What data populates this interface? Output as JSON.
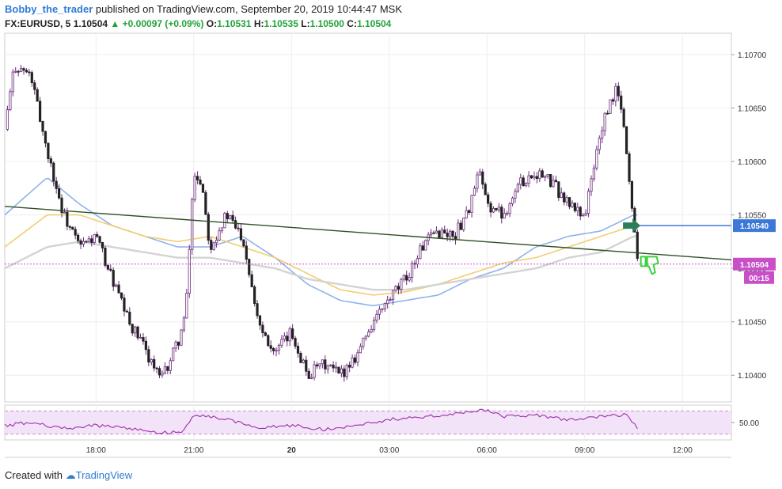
{
  "header": {
    "author": "Bobby_the_trader",
    "published_text": "published on TradingView.com, September 20, 2019 10:44:47 MSK",
    "symbol": "FX:EURUSD, 5",
    "last_price": "1.10504",
    "change_arrow": "▲",
    "change": "+0.00097 (+0.09%)",
    "open_label": "O:",
    "open_value": "1.10531",
    "high_label": "H:",
    "high_value": "1.10535",
    "low_label": "L:",
    "low_value": "1.10500",
    "close_label": "C:",
    "close_value": "1.10504"
  },
  "footer": {
    "created_with": "Created with",
    "brand": "TradingView"
  },
  "colors": {
    "candle_up": "#ffffff",
    "candle_down": "#222222",
    "wick": "#6b2d7a",
    "ma_blue": "#8fb3e8",
    "ma_gold": "#f2cd73",
    "ma_gray": "#d3d3d3",
    "trendline": "#2f4f23",
    "level_line": "#3b78d8",
    "rsi_line": "#9b30a8",
    "rsi_band": "#f3e3f9",
    "price_tag_blue": "#3b78d8",
    "price_tag_purple": "#c94fc9",
    "arrow": "#2e7d5a",
    "thumb_icon": "#3ad13a"
  },
  "chart_data": {
    "type": "candlestick",
    "symbol": "FX:EURUSD, 5",
    "ylim": [
      1.10375,
      1.1072
    ],
    "y_ticks": [
      "1.10700",
      "1.10650",
      "1.10600",
      "1.10550",
      "1.10500",
      "1.10450",
      "1.10400"
    ],
    "x_ticks": [
      "18:00",
      "21:00",
      "20",
      "03:00",
      "06:00",
      "09:00",
      "12:00"
    ],
    "price_levels": [
      {
        "label": "1.10540",
        "value": 1.1054,
        "style": "horizontal-line"
      },
      {
        "label": "1.10504",
        "value": 1.10504,
        "style": "last-price"
      }
    ],
    "countdown": "00:15",
    "trendline": {
      "from": {
        "x": "15:12",
        "y": 1.10558
      },
      "to": {
        "x": "13:30",
        "y": 1.10508
      }
    },
    "close_series_anchors": [
      [
        "15:12",
        1.1063
      ],
      [
        "15:30",
        1.1069
      ],
      [
        "16:00",
        1.1068
      ],
      [
        "16:30",
        1.1061
      ],
      [
        "17:00",
        1.1055
      ],
      [
        "17:30",
        1.1052
      ],
      [
        "18:00",
        1.1053
      ],
      [
        "18:30",
        1.1049
      ],
      [
        "19:00",
        1.1045
      ],
      [
        "19:30",
        1.10425
      ],
      [
        "20:00",
        1.10395
      ],
      [
        "20:30",
        1.1043
      ],
      [
        "20:45",
        1.10455
      ],
      [
        "21:00",
        1.1059
      ],
      [
        "21:15",
        1.1058
      ],
      [
        "21:30",
        1.1052
      ],
      [
        "22:00",
        1.1055
      ],
      [
        "22:30",
        1.1053
      ],
      [
        "23:00",
        1.1045
      ],
      [
        "23:30",
        1.1042
      ],
      [
        "00:00",
        1.1044
      ],
      [
        "00:30",
        1.104
      ],
      [
        "01:00",
        1.1041
      ],
      [
        "01:30",
        1.104
      ],
      [
        "02:00",
        1.1042
      ],
      [
        "02:30",
        1.1045
      ],
      [
        "03:00",
        1.1047
      ],
      [
        "03:30",
        1.1049
      ],
      [
        "04:00",
        1.1052
      ],
      [
        "04:30",
        1.10535
      ],
      [
        "05:00",
        1.1053
      ],
      [
        "05:30",
        1.1056
      ],
      [
        "05:45",
        1.1059
      ],
      [
        "06:00",
        1.1056
      ],
      [
        "06:30",
        1.1055
      ],
      [
        "07:00",
        1.1058
      ],
      [
        "07:30",
        1.1059
      ],
      [
        "08:00",
        1.1058
      ],
      [
        "08:30",
        1.1056
      ],
      [
        "09:00",
        1.1055
      ],
      [
        "09:30",
        1.1063
      ],
      [
        "10:00",
        1.1067
      ],
      [
        "10:15",
        1.1062
      ],
      [
        "10:30",
        1.1054
      ],
      [
        "10:40",
        1.10504
      ]
    ],
    "moving_averages": [
      {
        "color_key": "ma_blue",
        "anchors": [
          [
            "15:12",
            1.1055
          ],
          [
            "16:30",
            1.10585
          ],
          [
            "17:30",
            1.1056
          ],
          [
            "18:30",
            1.1054
          ],
          [
            "19:30",
            1.1053
          ],
          [
            "20:30",
            1.1052
          ],
          [
            "21:30",
            1.1052
          ],
          [
            "22:30",
            1.1053
          ],
          [
            "23:30",
            1.1051
          ],
          [
            "00:30",
            1.10485
          ],
          [
            "01:30",
            1.1047
          ],
          [
            "02:30",
            1.10465
          ],
          [
            "03:30",
            1.1047
          ],
          [
            "04:30",
            1.10475
          ],
          [
            "05:30",
            1.1049
          ],
          [
            "06:30",
            1.105
          ],
          [
            "07:30",
            1.1052
          ],
          [
            "08:30",
            1.1053
          ],
          [
            "09:30",
            1.10535
          ],
          [
            "10:30",
            1.1055
          ]
        ]
      },
      {
        "color_key": "ma_gold",
        "anchors": [
          [
            "15:12",
            1.1052
          ],
          [
            "16:30",
            1.1055
          ],
          [
            "17:30",
            1.1055
          ],
          [
            "18:30",
            1.1054
          ],
          [
            "19:30",
            1.1053
          ],
          [
            "20:30",
            1.10525
          ],
          [
            "21:30",
            1.1053
          ],
          [
            "22:30",
            1.1052
          ],
          [
            "23:30",
            1.1051
          ],
          [
            "00:30",
            1.10495
          ],
          [
            "01:30",
            1.1048
          ],
          [
            "02:30",
            1.10475
          ],
          [
            "03:30",
            1.10478
          ],
          [
            "04:30",
            1.10485
          ],
          [
            "05:30",
            1.10495
          ],
          [
            "06:30",
            1.10505
          ],
          [
            "07:30",
            1.1051
          ],
          [
            "08:30",
            1.1052
          ],
          [
            "09:30",
            1.1053
          ],
          [
            "10:30",
            1.1054
          ]
        ]
      },
      {
        "color_key": "ma_gray",
        "anchors": [
          [
            "15:12",
            1.105
          ],
          [
            "16:30",
            1.1052
          ],
          [
            "17:30",
            1.10525
          ],
          [
            "18:30",
            1.1052
          ],
          [
            "19:30",
            1.10515
          ],
          [
            "20:30",
            1.1051
          ],
          [
            "21:30",
            1.1051
          ],
          [
            "22:30",
            1.10505
          ],
          [
            "23:30",
            1.105
          ],
          [
            "00:30",
            1.1049
          ],
          [
            "01:30",
            1.10485
          ],
          [
            "02:30",
            1.1048
          ],
          [
            "03:30",
            1.1048
          ],
          [
            "04:30",
            1.10485
          ],
          [
            "05:30",
            1.1049
          ],
          [
            "06:30",
            1.10495
          ],
          [
            "07:30",
            1.105
          ],
          [
            "08:30",
            1.1051
          ],
          [
            "09:30",
            1.10515
          ],
          [
            "10:30",
            1.1053
          ]
        ]
      }
    ],
    "rsi": {
      "ylim": [
        20,
        80
      ],
      "y_ticks": [
        "50.00"
      ],
      "band": [
        30,
        70
      ],
      "anchors": [
        [
          "15:12",
          45
        ],
        [
          "16:00",
          50
        ],
        [
          "17:00",
          40
        ],
        [
          "18:00",
          45
        ],
        [
          "19:00",
          40
        ],
        [
          "20:00",
          32
        ],
        [
          "20:40",
          35
        ],
        [
          "21:00",
          65
        ],
        [
          "22:00",
          55
        ],
        [
          "23:00",
          40
        ],
        [
          "00:00",
          45
        ],
        [
          "01:00",
          38
        ],
        [
          "02:00",
          45
        ],
        [
          "03:00",
          55
        ],
        [
          "04:00",
          60
        ],
        [
          "05:00",
          65
        ],
        [
          "06:00",
          72
        ],
        [
          "06:30",
          60
        ],
        [
          "07:30",
          62
        ],
        [
          "08:30",
          55
        ],
        [
          "09:30",
          60
        ],
        [
          "10:15",
          64
        ],
        [
          "10:40",
          38
        ]
      ]
    },
    "markers": [
      {
        "type": "arrow",
        "x": "10:25",
        "y": 1.1054,
        "color_key": "arrow"
      },
      {
        "type": "thumbs-down-icon",
        "x": "10:55",
        "y": 1.10505,
        "color_key": "thumb_icon"
      }
    ]
  }
}
